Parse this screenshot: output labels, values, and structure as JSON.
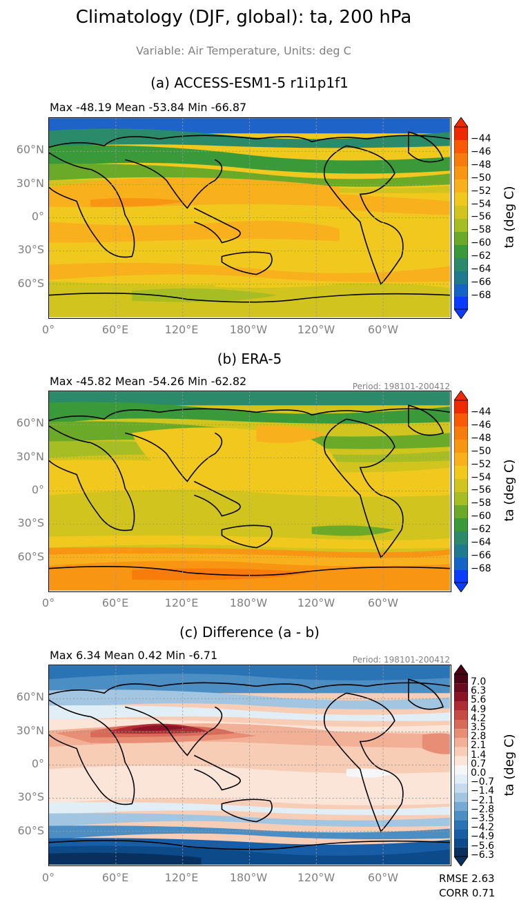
{
  "title": "Climatology (DJF, global): ta, 200 hPa",
  "subtitle": "Variable: Air Temperature, Units: deg C",
  "axes": {
    "lat_ticks": [
      "60°N",
      "30°N",
      "0°",
      "30°S",
      "60°S"
    ],
    "lon_ticks": [
      "0°",
      "60°E",
      "120°E",
      "180°W",
      "120°W",
      "60°W"
    ]
  },
  "panels": [
    {
      "title": "(a) ACCESS-ESM1-5 r1i1p1f1",
      "stats": "Max -48.19 Mean -53.84 Min -66.87",
      "period": "",
      "colorbar_label": "ta (deg C)",
      "colorbar_ticks": [
        "−44",
        "−46",
        "−48",
        "−50",
        "−52",
        "−54",
        "−56",
        "−58",
        "−60",
        "−62",
        "−64",
        "−66",
        "−68"
      ]
    },
    {
      "title": "(b) ERA-5",
      "stats": "Max -45.82 Mean -54.26 Min -62.82",
      "period": "Period: 198101-200412",
      "colorbar_label": "ta (deg C)",
      "colorbar_ticks": [
        "−44",
        "−46",
        "−48",
        "−50",
        "−52",
        "−54",
        "−56",
        "−58",
        "−60",
        "−62",
        "−64",
        "−66",
        "−68"
      ]
    },
    {
      "title": "(c) Difference (a - b)",
      "stats": "Max 6.34 Mean 0.42 Min -6.71",
      "period": "Period: 198101-200412",
      "colorbar_label": "ta (deg C)",
      "colorbar_ticks": [
        "7.0",
        "6.3",
        "5.6",
        "4.9",
        "4.2",
        "3.5",
        "2.8",
        "2.1",
        "1.4",
        "0.7",
        "0.0",
        "−0.7",
        "−1.4",
        "−2.1",
        "−2.8",
        "−3.5",
        "−4.2",
        "−4.9",
        "−5.6",
        "−6.3"
      ],
      "metrics": [
        "RMSE 2.63",
        "CORR 0.71"
      ]
    }
  ],
  "colors": {
    "temp_scale": [
      "#0a3cff",
      "#1464c8",
      "#1e7a8c",
      "#2a8a6a",
      "#3a9a3a",
      "#6aaa28",
      "#a6be24",
      "#d2c41e",
      "#f0c81e",
      "#f8b01c",
      "#f89614",
      "#f87c0c",
      "#f85a06",
      "#f02a00"
    ],
    "diff_scale": [
      "#08305e",
      "#0c4a8a",
      "#175ea6",
      "#2a74b6",
      "#4a8ec4",
      "#76aad2",
      "#a2c6e2",
      "#c6dcee",
      "#e2eef6",
      "#f4f6f8",
      "#fbe4d8",
      "#f8cdb6",
      "#f2b096",
      "#e88e76",
      "#d86a58",
      "#c84a44",
      "#b02c34",
      "#8c1226",
      "#6a0a1e",
      "#4a0416"
    ]
  }
}
